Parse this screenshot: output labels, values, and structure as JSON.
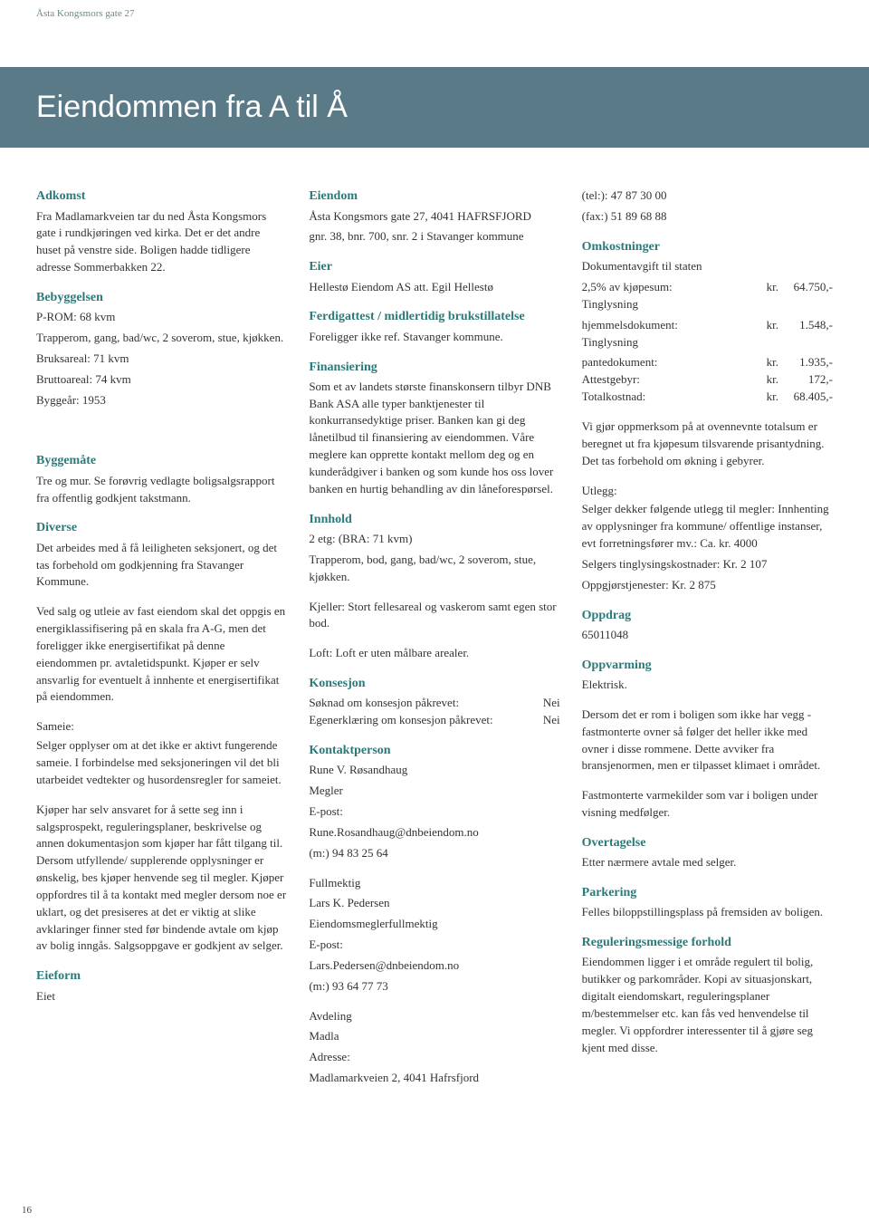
{
  "colors": {
    "heading": "#2a7a7a",
    "banner_bg": "#5a7a88",
    "banner_text": "#ffffff",
    "body_text": "#333333",
    "header_text": "#6b8a8a"
  },
  "page": {
    "header": "Åsta Kongsmors gate 27",
    "title": "Eiendommen fra A til Å",
    "number": "16"
  },
  "col1": {
    "adkomst": {
      "h": "Adkomst",
      "p": "Fra Madlamarkveien tar du ned Åsta Kongsmors gate i rundkjøringen ved kirka. Det er det andre huset på venstre side. Boligen hadde tidligere adresse Sommerbakken 22."
    },
    "bebyggelsen": {
      "h": "Bebyggelsen",
      "l1": "P-ROM: 68 kvm",
      "l2": "Trapperom, gang, bad/wc, 2 soverom, stue, kjøkken.",
      "l3": "Bruksareal: 71 kvm",
      "l4": "Bruttoareal: 74 kvm",
      "l5": "Byggeår: 1953"
    },
    "byggemate": {
      "h": "Byggemåte",
      "p": "Tre og mur. Se forøvrig vedlagte boligsalgsrapport fra offentlig godkjent takstmann."
    },
    "diverse": {
      "h": "Diverse",
      "p1": "Det arbeides med å få leiligheten seksjonert, og det tas forbehold om godkjenning fra Stavanger Kommune.",
      "p2": "Ved salg og utleie av fast eiendom skal det oppgis en energiklassifisering på en skala fra A-G, men det foreligger ikke energisertifikat på denne eiendommen pr. avtaletidspunkt. Kjøper er selv ansvarlig for eventuelt å innhente et energisertifikat på eiendommen.",
      "sameie_h": "Sameie:",
      "sameie_p": "Selger opplyser om at det ikke er aktivt fungerende sameie. I forbindelse med seksjoneringen vil det bli utarbeidet vedtekter og husordensregler for sameiet.",
      "p3": "Kjøper har selv ansvaret for å sette seg inn i salgsprospekt, reguleringsplaner, beskrivelse og annen dokumentasjon som kjøper har fått tilgang til. Dersom utfyllende/ supplerende opplysninger er ønskelig, bes kjøper henvende seg til megler. Kjøper oppfordres til å ta kontakt med megler dersom noe er uklart, og det presiseres at det er viktig at slike avklaringer finner sted før bindende avtale om kjøp av bolig inngås. Salgsoppgave er godkjent av selger."
    },
    "eieform": {
      "h": "Eieform",
      "p": "Eiet"
    }
  },
  "col2": {
    "eiendom": {
      "h": "Eiendom",
      "l1": "Åsta Kongsmors gate 27, 4041 HAFRSFJORD",
      "l2": "gnr. 38, bnr. 700, snr. 2 i Stavanger kommune"
    },
    "eier": {
      "h": "Eier",
      "p": "Hellestø Eiendom AS att. Egil Hellestø"
    },
    "ferdig": {
      "h": "Ferdigattest / midlertidig brukstillatelse",
      "p": "Foreligger ikke ref. Stavanger kommune."
    },
    "finans": {
      "h": "Finansiering",
      "p": "Som et av landets største finanskonsern tilbyr DNB Bank ASA alle typer banktjenester til konkurransedyktige priser. Banken kan gi deg lånetilbud til finansiering av eiendommen. Våre meglere kan opprette kontakt mellom deg og en kunderådgiver i banken og som kunde hos oss lover banken en hurtig behandling av din låneforespørsel."
    },
    "innhold": {
      "h": "Innhold",
      "l1": "2 etg: (BRA: 71 kvm)",
      "l2": "Trapperom, bod, gang, bad/wc, 2 soverom, stue, kjøkken.",
      "l3": "Kjeller: Stort fellesareal og vaskerom samt egen stor bod.",
      "l4": "Loft: Loft er uten målbare arealer."
    },
    "konsesjon": {
      "h": "Konsesjon",
      "r1_label": "Søknad om konsesjon påkrevet:",
      "r1_val": "Nei",
      "r2_label": "Egenerklæring om konsesjon påkrevet:",
      "r2_val": "Nei"
    },
    "kontakt": {
      "h": "Kontaktperson",
      "l1": "Rune V. Røsandhaug",
      "l2": "Megler",
      "l3": "E-post:",
      "l4": "Rune.Rosandhaug@dnbeiendom.no",
      "l5": "(m:) 94 83 25 64",
      "f1": "Fullmektig",
      "f2": "Lars K. Pedersen",
      "f3": "Eiendomsmeglerfullmektig",
      "f4": "E-post:",
      "f5": "Lars.Pedersen@dnbeiendom.no",
      "f6": "(m:) 93 64 77 73",
      "a1": "Avdeling",
      "a2": "Madla",
      "a3": "Adresse:",
      "a4": "Madlamarkveien 2, 4041 Hafrsfjord"
    }
  },
  "col3": {
    "telfax": {
      "tel": "(tel:): 47 87 30 00",
      "fax": "(fax:) 51 89 68 88"
    },
    "omkost": {
      "h": "Omkostninger",
      "intro": "Dokumentavgift til staten",
      "rows": [
        {
          "label": "2,5% av kjøpesum:",
          "cur": "kr.",
          "val": "64.750,-"
        },
        {
          "label": "Tinglysning hjemmelsdokument:",
          "cur": "kr.",
          "val": "1.548,-",
          "wrap": true
        },
        {
          "label": "Tinglysning pantedokument:",
          "cur": "kr.",
          "val": "1.935,-",
          "wrap": true
        },
        {
          "label": "Attestgebyr:",
          "cur": "kr.",
          "val": "172,-"
        },
        {
          "label": "Totalkostnad:",
          "cur": "kr.",
          "val": "68.405,-"
        }
      ],
      "note": "Vi gjør oppmerksom på at ovennevnte totalsum er beregnet ut fra kjøpesum tilsvarende prisantydning. Det tas forbehold om økning i gebyrer.",
      "utlegg_h": "Utlegg:",
      "utlegg_p1": "Selger dekker følgende utlegg til megler: Innhenting av opplysninger fra kommune/ offentlige instanser, evt forretningsfører mv.: Ca. kr. 4000",
      "utlegg_p2": "Selgers tinglysingskostnader: Kr. 2 107",
      "utlegg_p3": "Oppgjørstjenester: Kr. 2 875"
    },
    "oppdrag": {
      "h": "Oppdrag",
      "p": "65011048"
    },
    "oppvarming": {
      "h": "Oppvarming",
      "l1": "Elektrisk.",
      "p1": "Dersom det er rom i boligen som ikke har vegg -fastmonterte ovner så følger det heller ikke med ovner i disse rommene. Dette avviker fra bransjenormen, men er tilpasset klimaet i området.",
      "p2": "Fastmonterte varmekilder som var i boligen under visning medfølger."
    },
    "overtagelse": {
      "h": "Overtagelse",
      "p": "Etter nærmere avtale med selger."
    },
    "parkering": {
      "h": "Parkering",
      "p": "Felles biloppstillingsplass på fremsiden av boligen."
    },
    "regulering": {
      "h": "Reguleringsmessige forhold",
      "p": "Eiendommen ligger i et område regulert til bolig, butikker og parkområder. Kopi av situasjonskart, digitalt eiendomskart, reguleringsplaner m/bestemmelser etc. kan fås ved henvendelse til megler. Vi oppfordrer interessenter til å gjøre seg kjent med disse."
    }
  }
}
